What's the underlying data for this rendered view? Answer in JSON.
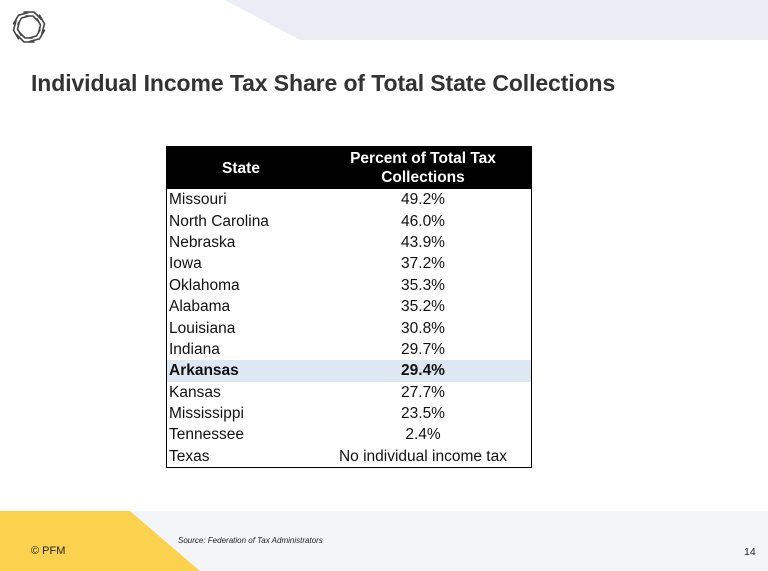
{
  "slide": {
    "title": "Individual Income Tax Share of Total State Collections",
    "source": "Source: Federation of Tax Administrators",
    "copyright": "© PFM",
    "page_number": "14"
  },
  "table": {
    "headers": {
      "state": "State",
      "percent": "Percent of Total Tax Collections"
    },
    "rows": [
      {
        "state": "Missouri",
        "percent": "49.2%"
      },
      {
        "state": "North Carolina",
        "percent": "46.0%"
      },
      {
        "state": "Nebraska",
        "percent": "43.9%"
      },
      {
        "state": "Iowa",
        "percent": "37.2%"
      },
      {
        "state": "Oklahoma",
        "percent": "35.3%"
      },
      {
        "state": "Alabama",
        "percent": "35.2%"
      },
      {
        "state": "Louisiana",
        "percent": "30.8%"
      },
      {
        "state": "Indiana",
        "percent": "29.7%"
      },
      {
        "state": "Arkansas",
        "percent": "29.4%"
      },
      {
        "state": "Kansas",
        "percent": "27.7%"
      },
      {
        "state": "Mississippi",
        "percent": "23.5%"
      },
      {
        "state": "Tennessee",
        "percent": "2.4%"
      },
      {
        "state": "Texas",
        "percent": "No individual income tax"
      }
    ],
    "highlight_color": "#dde8f3"
  },
  "colors": {
    "accent_yellow": "#fbd24e",
    "band_gray": "#ebedf4",
    "header_black": "#000000",
    "title_gray": "#333333"
  }
}
